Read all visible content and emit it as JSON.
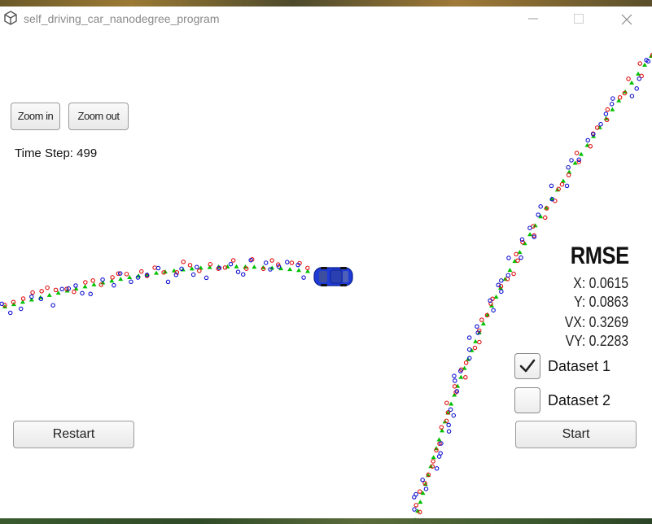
{
  "window": {
    "title": "self_driving_car_nanodegree_program"
  },
  "controls": {
    "zoom_in": "Zoom in",
    "zoom_out": "Zoom out",
    "restart": "Restart",
    "start": "Start"
  },
  "status": {
    "time_step": "Time Step: 499"
  },
  "rmse": {
    "title": "RMSE",
    "x": "X: 0.0615",
    "y": "Y: 0.0863",
    "vx": "VX: 0.3269",
    "vy": "VY: 0.2283"
  },
  "datasets": [
    {
      "label": "Dataset 1",
      "checked": true
    },
    {
      "label": "Dataset 2",
      "checked": false
    }
  ],
  "colors": {
    "estimate_marker": "#00c000",
    "lidar_marker": "#e01010",
    "radar_marker": "#1010d0",
    "car_body": "#1f3bd6"
  },
  "icons": {
    "app": "unity-icon",
    "minimize": "minimize-icon",
    "maximize": "maximize-icon",
    "close": "close-icon",
    "checkmark": "checkmark-icon",
    "car": "car-icon"
  }
}
